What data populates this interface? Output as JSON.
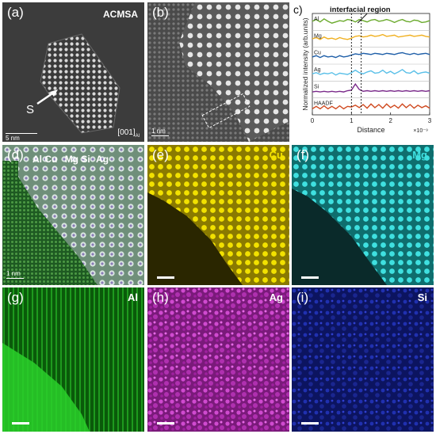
{
  "figure": {
    "panel_a": {
      "letter": "(a)",
      "sample": "ACMSA",
      "marker": "S",
      "scalebar": "5 nm",
      "zone_axis": "[001]",
      "zone_axis_sub": "Al"
    },
    "panel_b": {
      "letter": "(b)",
      "scalebar": "1 nm"
    },
    "panel_c": {
      "letter": "c)"
    },
    "panel_d": {
      "letter": "(d)",
      "elements": [
        "Al",
        "Cu",
        "Mg",
        "Si",
        "Ag"
      ],
      "scalebar": "1 nm"
    },
    "panel_e": {
      "letter": "(e)",
      "element": "Cu",
      "color": "#f2e100"
    },
    "panel_f": {
      "letter": "(f)",
      "element": "Mg",
      "color": "#2fd6d6"
    },
    "panel_g": {
      "letter": "(g)",
      "element": "Al",
      "color": "#1ec81e"
    },
    "panel_h": {
      "letter": "(h)",
      "element": "Ag",
      "color": "#e040e0"
    },
    "panel_i": {
      "letter": "(i)",
      "element": "Si",
      "color": "#2a3ce0"
    }
  },
  "chart_data": {
    "type": "line",
    "title": "",
    "annotation": "interfacial region",
    "xlabel": "Distance",
    "x_exponent": "×10⁻⁹",
    "ylabel": "Normalized intensity (arb.units)",
    "xlim": [
      0,
      3
    ],
    "xticks": [
      "0",
      "1",
      "2",
      "3"
    ],
    "interfacial_region": [
      1.0,
      1.25
    ],
    "series": [
      {
        "name": "Al",
        "color": "#6aaa2c",
        "values": [
          0.55,
          0.7,
          0.5,
          0.75,
          0.55,
          0.4,
          0.5,
          0.6,
          0.55,
          0.7,
          0.65,
          0.5,
          0.7,
          0.6,
          0.5,
          0.65,
          0.7,
          0.55,
          0.6,
          0.7,
          0.6,
          0.45,
          0.6,
          0.7,
          0.55,
          0.5,
          0.65,
          0.6,
          0.45,
          0.5,
          0.6
        ]
      },
      {
        "name": "Mg",
        "color": "#f0b020",
        "values": [
          0.5,
          0.6,
          0.45,
          0.65,
          0.5,
          0.55,
          0.45,
          0.6,
          0.5,
          0.45,
          0.55,
          0.7,
          0.75,
          0.65,
          0.7,
          0.8,
          0.7,
          0.75,
          0.85,
          0.7,
          0.75,
          0.8,
          0.65,
          0.7,
          0.75,
          0.8,
          0.7,
          0.75,
          0.8,
          0.7,
          0.65
        ]
      },
      {
        "name": "Cu",
        "color": "#1f5fa8",
        "values": [
          0.4,
          0.5,
          0.35,
          0.5,
          0.4,
          0.45,
          0.35,
          0.5,
          0.4,
          0.45,
          0.55,
          0.65,
          0.6,
          0.7,
          0.65,
          0.6,
          0.7,
          0.65,
          0.6,
          0.7,
          0.65,
          0.6,
          0.7,
          0.75,
          0.65,
          0.6,
          0.7,
          0.6,
          0.65,
          0.7,
          0.6
        ]
      },
      {
        "name": "Ag",
        "color": "#5bc0e8",
        "values": [
          0.4,
          0.5,
          0.35,
          0.45,
          0.4,
          0.5,
          0.3,
          0.45,
          0.4,
          0.35,
          0.5,
          0.7,
          0.5,
          0.4,
          0.55,
          0.65,
          0.45,
          0.5,
          0.7,
          0.45,
          0.6,
          0.4,
          0.55,
          0.75,
          0.5,
          0.45,
          0.65,
          0.4,
          0.5,
          0.55,
          0.45
        ]
      },
      {
        "name": "Si",
        "color": "#7a2a8a",
        "values": [
          0.3,
          0.35,
          0.3,
          0.35,
          0.3,
          0.35,
          0.3,
          0.35,
          0.3,
          0.4,
          0.45,
          0.95,
          0.5,
          0.35,
          0.4,
          0.35,
          0.4,
          0.35,
          0.4,
          0.35,
          0.4,
          0.35,
          0.4,
          0.35,
          0.4,
          0.35,
          0.4,
          0.35,
          0.4,
          0.35,
          0.4
        ]
      },
      {
        "name": "HAADF",
        "color": "#d04a20",
        "values": [
          0.3,
          0.5,
          0.3,
          0.55,
          0.3,
          0.5,
          0.3,
          0.55,
          0.3,
          0.5,
          0.45,
          0.6,
          0.4,
          0.65,
          0.35,
          0.7,
          0.4,
          0.65,
          0.35,
          0.7,
          0.4,
          0.6,
          0.35,
          0.7,
          0.4,
          0.65,
          0.35,
          0.6,
          0.4,
          0.55,
          0.35
        ]
      }
    ]
  }
}
